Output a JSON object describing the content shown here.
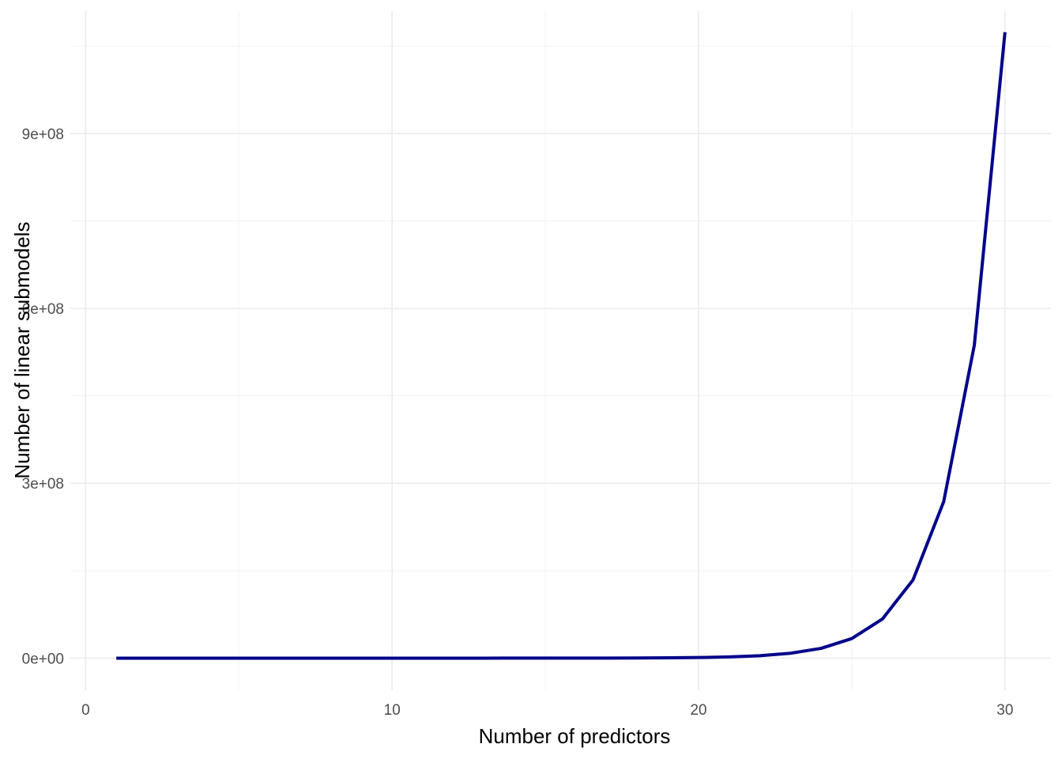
{
  "chart_data": {
    "type": "line",
    "title": "",
    "xlabel": "Number of predictors",
    "ylabel": "Number of linear submodels",
    "xlim": [
      -0.5,
      31.5
    ],
    "ylim": [
      -55000000,
      1110000000
    ],
    "x_ticks": [
      0,
      10,
      20,
      30
    ],
    "x_tick_labels": [
      "0",
      "10",
      "20",
      "30"
    ],
    "y_ticks": [
      0,
      300000000,
      600000000,
      900000000
    ],
    "y_tick_labels": [
      "0e+00",
      "3e+08",
      "6e+08",
      "9e+08"
    ],
    "grid": true,
    "legend": "none",
    "series": [
      {
        "color": "#00008b",
        "x": [
          1,
          2,
          3,
          4,
          5,
          6,
          7,
          8,
          9,
          10,
          11,
          12,
          13,
          14,
          15,
          16,
          17,
          18,
          19,
          20,
          21,
          22,
          23,
          24,
          25,
          26,
          27,
          28,
          29,
          30
        ],
        "y": [
          1,
          3,
          7,
          15,
          31,
          63,
          127,
          255,
          511,
          1023,
          2047,
          4095,
          8191,
          16383,
          32767,
          65535,
          131071,
          262143,
          524287,
          1048575,
          2097151,
          4194303,
          8388607,
          16777215,
          33554431,
          67108863,
          134217727,
          268435455,
          536870911,
          1073741823
        ]
      }
    ]
  }
}
